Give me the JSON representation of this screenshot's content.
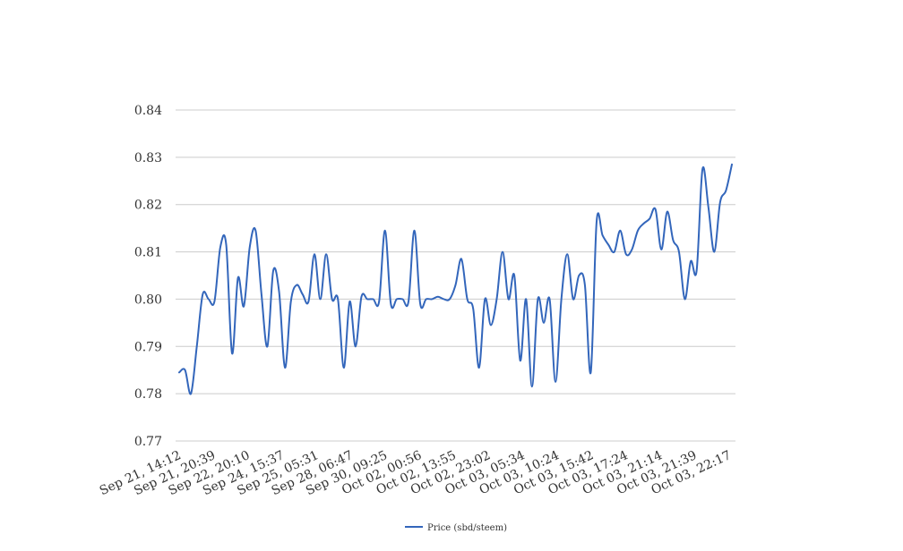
{
  "chart_data": {
    "type": "line",
    "title": "",
    "xlabel": "",
    "ylabel": "",
    "ylim": [
      0.77,
      0.84
    ],
    "yticks": [
      "0.77",
      "0.78",
      "0.79",
      "0.80",
      "0.81",
      "0.82",
      "0.83",
      "0.84"
    ],
    "grid": true,
    "legend_position": "bottom-center",
    "line_color": "#3366bb",
    "xtick_labels": [
      "Sep 21, 14:12",
      "Sep 21, 20:39",
      "Sep 22, 20:10",
      "Sep 24, 15:37",
      "Sep 25, 05:31",
      "Sep 28, 06:47",
      "Sep 30, 09:25",
      "Oct 02, 00:56",
      "Oct 02, 13:55",
      "Oct 02, 23:02",
      "Oct 03, 05:34",
      "Oct 03, 10:24",
      "Oct 03, 15:42",
      "Oct 03, 17:24",
      "Oct 03, 21:14",
      "Oct 03, 21:39",
      "Oct 03, 22:17"
    ],
    "series": [
      {
        "name": "Price (sbd/steem)",
        "values": [
          0.7845,
          0.785,
          0.78,
          0.79,
          0.801,
          0.8,
          0.7995,
          0.811,
          0.8115,
          0.7885,
          0.8045,
          0.7985,
          0.811,
          0.8145,
          0.801,
          0.79,
          0.806,
          0.8015,
          0.7855,
          0.7995,
          0.803,
          0.801,
          0.7995,
          0.8095,
          0.8,
          0.8095,
          0.8,
          0.8,
          0.7855,
          0.7995,
          0.79,
          0.8005,
          0.8,
          0.8,
          0.7995,
          0.8145,
          0.799,
          0.8,
          0.8,
          0.7995,
          0.8145,
          0.799,
          0.8,
          0.8,
          0.8005,
          0.8,
          0.8,
          0.803,
          0.8085,
          0.8,
          0.798,
          0.7855,
          0.8,
          0.7945,
          0.8,
          0.81,
          0.8,
          0.805,
          0.787,
          0.8,
          0.7815,
          0.8,
          0.795,
          0.8,
          0.7825,
          0.8,
          0.8095,
          0.8,
          0.805,
          0.803,
          0.7845,
          0.8165,
          0.8135,
          0.8115,
          0.81,
          0.8145,
          0.8095,
          0.8105,
          0.8145,
          0.816,
          0.817,
          0.819,
          0.8105,
          0.8185,
          0.8125,
          0.81,
          0.8,
          0.808,
          0.806,
          0.8275,
          0.8195,
          0.81,
          0.8205,
          0.823,
          0.8285
        ]
      }
    ]
  }
}
